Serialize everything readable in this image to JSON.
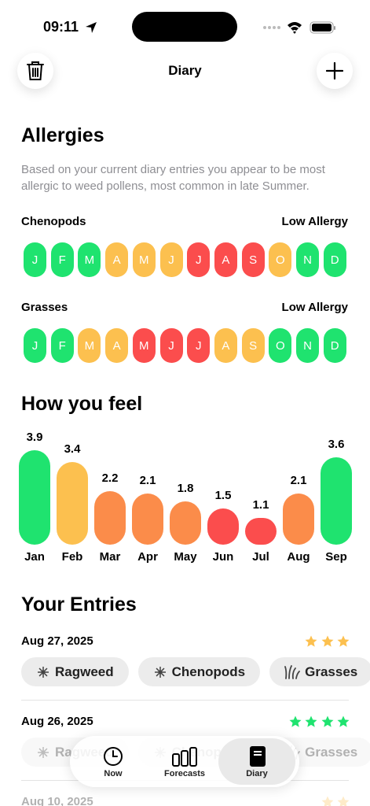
{
  "status_bar": {
    "time": "09:11"
  },
  "header": {
    "title": "Diary"
  },
  "allergies": {
    "title": "Allergies",
    "description": "Based on your current diary entries you appear to be most allergic to weed pollens, most common in late Summer.",
    "rows": [
      {
        "name": "Chenopods",
        "level": "Low Allergy",
        "months": [
          "J",
          "F",
          "M",
          "A",
          "M",
          "J",
          "J",
          "A",
          "S",
          "O",
          "N",
          "D"
        ],
        "colors": [
          "#1fe36f",
          "#1fe36f",
          "#1fe36f",
          "#fcc04f",
          "#fcc04f",
          "#fcc04f",
          "#fb4d4d",
          "#fb4d4d",
          "#fb4d4d",
          "#fcc04f",
          "#1fe36f",
          "#1fe36f"
        ]
      },
      {
        "name": "Grasses",
        "level": "Low Allergy",
        "months": [
          "J",
          "F",
          "M",
          "A",
          "M",
          "J",
          "J",
          "A",
          "S",
          "O",
          "N",
          "D"
        ],
        "colors": [
          "#1fe36f",
          "#1fe36f",
          "#fcc04f",
          "#fcc04f",
          "#fb4d4d",
          "#fb4d4d",
          "#fb4d4d",
          "#fcc04f",
          "#fcc04f",
          "#1fe36f",
          "#1fe36f",
          "#1fe36f"
        ]
      }
    ]
  },
  "chart_data": {
    "type": "bar",
    "title": "How you feel",
    "categories": [
      "Jan",
      "Feb",
      "Mar",
      "Apr",
      "May",
      "Jun",
      "Jul",
      "Aug",
      "Sep"
    ],
    "values": [
      3.9,
      3.4,
      2.2,
      2.1,
      1.8,
      1.5,
      1.1,
      2.1,
      3.6
    ],
    "colors": [
      "#1fe36f",
      "#fcc04f",
      "#fb8c4a",
      "#fb8c4a",
      "#fb8c4a",
      "#fb4d4d",
      "#fb4d4d",
      "#fb8c4a",
      "#1fe36f"
    ]
  },
  "entries": {
    "title": "Your Entries",
    "items": [
      {
        "date": "Aug 27, 2025",
        "rating": 3,
        "star_color": "#fcc04f",
        "tags": [
          "Ragweed",
          "Chenopods",
          "Grasses"
        ]
      },
      {
        "date": "Aug 26, 2025",
        "rating": 4,
        "star_color": "#1fe36f",
        "tags": [
          "Ragweed",
          "Chenopods",
          "Grasses"
        ]
      },
      {
        "date": "Aug 10, 2025",
        "rating": 2,
        "star_color": "#fcc04f",
        "tags": []
      }
    ]
  },
  "tab_bar": {
    "tabs": [
      "Now",
      "Forecasts",
      "Diary"
    ],
    "selected": 2
  }
}
